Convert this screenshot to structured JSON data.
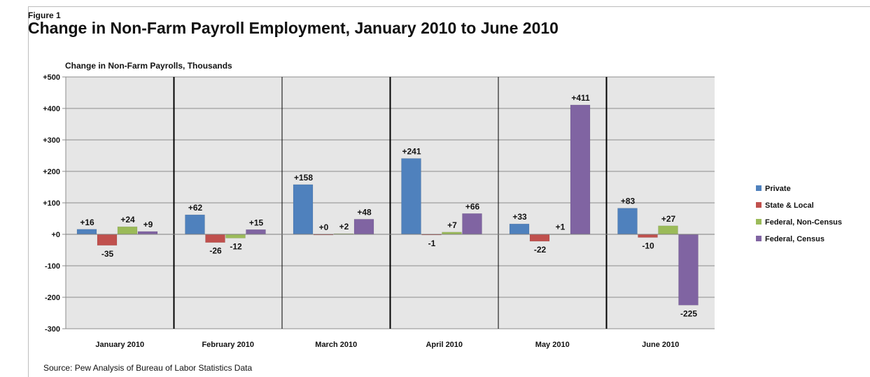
{
  "figure_label": "Figure 1",
  "source": "Source: Pew Analysis of Bureau of Labor Statistics Data",
  "colors": {
    "plot_bg": "#e6e6e6",
    "grid": "#8c8c8c",
    "divider": "#000000"
  },
  "chart_data": {
    "type": "bar",
    "title": "Change in Non-Farm Payroll Employment, January 2010 to June 2010",
    "ylabel": "Change in Non-Farm Payrolls, Thousands",
    "xlabel": "",
    "ylim": [
      -300,
      500
    ],
    "yticks": [
      500,
      400,
      300,
      200,
      100,
      0,
      -100,
      -200,
      -300
    ],
    "ytick_labels": [
      "+500",
      "+400",
      "+300",
      "+200",
      "+100",
      "+0",
      "-100",
      "-200",
      "-300"
    ],
    "grid": true,
    "legend_position": "right",
    "categories": [
      "January 2010",
      "February 2010",
      "March 2010",
      "April 2010",
      "May 2010",
      "June 2010"
    ],
    "series": [
      {
        "name": "Private",
        "color": "#4f81bd",
        "values": [
          16,
          62,
          158,
          241,
          33,
          83
        ],
        "labels": [
          "+16",
          "+62",
          "+158",
          "+241",
          "+33",
          "+83"
        ]
      },
      {
        "name": "State & Local",
        "color": "#c0504d",
        "values": [
          -35,
          -26,
          0,
          -1,
          -22,
          -10
        ],
        "labels": [
          "-35",
          "-26",
          "+0",
          "-1",
          "-22",
          "-10"
        ]
      },
      {
        "name": "Federal, Non-Census",
        "color": "#9bbb59",
        "values": [
          24,
          -12,
          2,
          7,
          1,
          27
        ],
        "labels": [
          "+24",
          "-12",
          "+2",
          "+7",
          "+1",
          "+27"
        ]
      },
      {
        "name": "Federal, Census",
        "color": "#8064a2",
        "values": [
          9,
          15,
          48,
          66,
          411,
          -225
        ],
        "labels": [
          "+9",
          "+15",
          "+48",
          "+66",
          "+411",
          "-225"
        ]
      }
    ]
  }
}
